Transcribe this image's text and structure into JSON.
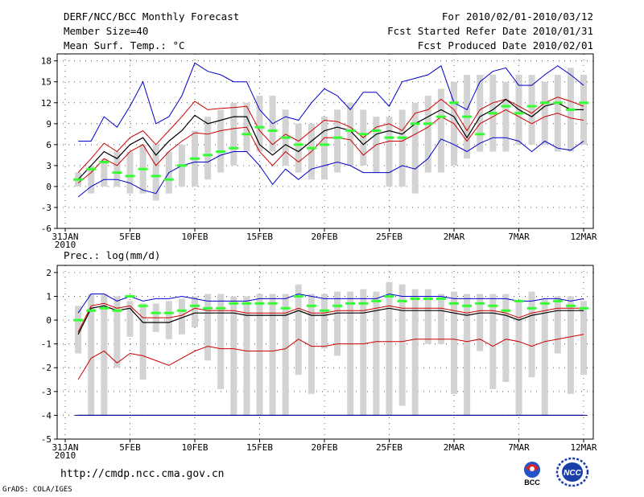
{
  "header": {
    "title": "DERF/NCC/BCC Monthly Forecast",
    "member_size": "Member Size=40",
    "variable": "Mean Surf. Temp.: °C",
    "period": "For 2010/02/01-2010/03/12",
    "started": "Fcst Started Refer Date 2010/01/31",
    "produced": "Fcst Produced Date 2010/02/01"
  },
  "footer": {
    "url": "http://cmdp.ncc.cma.gov.cn",
    "grads": "GrADS: COLA/IGES"
  },
  "logos": {
    "bcc_text": "BCC",
    "ncc_text": "NCC"
  },
  "colors": {
    "max_line": "#0000cc",
    "min_line": "#0000cc",
    "upper_line": "#cc0000",
    "lower_line": "#cc0000",
    "mean_line": "#000000",
    "median_mark": "#33ff33",
    "box": "#d3d3d3",
    "grid": "#555555"
  },
  "chart_data": [
    {
      "type": "box-ensemble",
      "title": "Mean Surf. Temp.: °C",
      "ylim": [
        -6,
        19
      ],
      "yticks": [
        -6,
        -3,
        0,
        3,
        6,
        9,
        12,
        15,
        18
      ],
      "xlim": [
        0,
        40
      ],
      "xticks": [
        {
          "x": 0,
          "label": "31JAN",
          "sub": "2010"
        },
        {
          "x": 5,
          "label": "5FEB"
        },
        {
          "x": 10,
          "label": "10FEB"
        },
        {
          "x": 15,
          "label": "15FEB"
        },
        {
          "x": 20,
          "label": "20FEB"
        },
        {
          "x": 25,
          "label": "25FEB"
        },
        {
          "x": 30,
          "label": "2MAR"
        },
        {
          "x": 35,
          "label": "7MAR"
        },
        {
          "x": 40,
          "label": "12MAR"
        }
      ],
      "days": [
        1,
        2,
        3,
        4,
        5,
        6,
        7,
        8,
        9,
        10,
        11,
        12,
        13,
        14,
        15,
        16,
        17,
        18,
        19,
        20,
        21,
        22,
        23,
        24,
        25,
        26,
        27,
        28,
        29,
        30,
        31,
        32,
        33,
        34,
        35,
        36,
        37,
        38,
        39,
        40
      ],
      "box_low": [
        0,
        -1,
        0,
        0,
        -1,
        -1,
        -2,
        -1,
        0,
        0,
        1,
        2,
        3,
        5,
        5,
        5,
        3,
        2,
        1,
        1,
        2,
        3,
        3,
        2,
        0,
        0,
        -1,
        2,
        2,
        3,
        4,
        5,
        5,
        5,
        6,
        6,
        6,
        5,
        5,
        6
      ],
      "box_high": [
        2,
        3,
        4,
        5,
        5,
        6,
        6,
        5,
        6,
        8,
        10,
        11,
        12,
        12,
        13,
        13,
        11,
        9,
        9,
        10,
        11,
        12,
        11,
        10,
        10,
        11,
        12,
        13,
        14,
        15,
        16,
        16,
        16,
        15,
        16,
        16,
        15,
        16,
        17,
        16
      ],
      "median": [
        1,
        2.5,
        3.5,
        2,
        1.5,
        2.5,
        1.5,
        1,
        3,
        4,
        4.5,
        5,
        5.5,
        7.5,
        8.5,
        8,
        7,
        6,
        5.5,
        6,
        7,
        8,
        7.5,
        8,
        7,
        7,
        9,
        9,
        10,
        12,
        10,
        7.5,
        10.5,
        11.5,
        10.5,
        11.5,
        12,
        12,
        11,
        12
      ],
      "max": [
        6.5,
        6.5,
        10,
        8.5,
        11.5,
        15,
        9,
        10,
        13,
        17.7,
        16.5,
        16,
        15,
        15,
        11,
        9,
        10,
        9.5,
        12,
        14,
        13,
        11,
        13.5,
        13.5,
        11.5,
        15,
        15.5,
        16,
        17.3,
        12,
        11,
        15,
        16.5,
        17,
        14.5,
        14.5,
        16,
        17.3,
        16,
        14.5
      ],
      "upper": [
        2,
        4,
        6.2,
        5,
        7,
        8,
        6,
        8,
        10,
        12.2,
        11,
        11.2,
        11.3,
        11.5,
        8,
        6,
        7.5,
        6.5,
        8,
        9.5,
        9.3,
        8.5,
        7,
        8.5,
        9,
        8,
        10.5,
        11,
        12.5,
        11,
        8,
        11,
        12,
        12.5,
        11.5,
        10.5,
        12,
        12.8,
        12.2,
        11.5
      ],
      "mean": [
        1,
        3,
        5,
        4,
        6,
        7,
        4.5,
        6.5,
        8,
        10.2,
        9,
        9.5,
        10,
        10,
        6,
        4.5,
        6,
        5,
        6.5,
        8,
        8.5,
        8,
        6,
        7.5,
        8,
        7.5,
        9,
        10,
        11,
        10,
        7,
        10,
        11,
        12.5,
        11,
        10,
        11.5,
        12,
        11,
        11
      ],
      "lower": [
        0.5,
        2,
        4,
        3,
        5,
        6,
        3,
        5,
        6.5,
        7.7,
        7.5,
        8,
        8.3,
        8.5,
        5,
        3,
        5,
        3.5,
        5,
        7,
        7,
        6.7,
        4.5,
        6,
        6.5,
        6.5,
        7.5,
        8.5,
        10,
        9,
        6.5,
        9,
        10,
        11,
        10,
        9,
        10,
        10.5,
        9.8,
        9.5
      ],
      "min": [
        -1.5,
        0,
        1,
        1,
        0.5,
        -0.5,
        -1,
        2,
        3,
        3.5,
        3.5,
        4.5,
        5,
        5,
        3,
        0.3,
        2.5,
        1,
        2.5,
        3,
        3.5,
        3,
        2,
        2,
        2,
        3,
        2.5,
        4,
        6.8,
        6,
        5,
        6.2,
        7,
        7,
        6.5,
        5,
        6.5,
        5.5,
        5.2,
        6.5
      ]
    },
    {
      "type": "box-ensemble",
      "title": "Prec.: log(mm/d)",
      "ylim": [
        -5,
        2.3
      ],
      "yticks": [
        -5,
        -4,
        -3,
        -2,
        -1,
        0,
        1,
        2
      ],
      "xlim": [
        0,
        40
      ],
      "xticks": [
        {
          "x": 0,
          "label": "31JAN",
          "sub": "2010"
        },
        {
          "x": 5,
          "label": "5FEB"
        },
        {
          "x": 10,
          "label": "10FEB"
        },
        {
          "x": 15,
          "label": "15FEB"
        },
        {
          "x": 20,
          "label": "20FEB"
        },
        {
          "x": 25,
          "label": "25FEB"
        },
        {
          "x": 30,
          "label": "2MAR"
        },
        {
          "x": 35,
          "label": "7MAR"
        },
        {
          "x": 40,
          "label": "12MAR"
        }
      ],
      "days": [
        1,
        2,
        3,
        4,
        5,
        6,
        7,
        8,
        9,
        10,
        11,
        12,
        13,
        14,
        15,
        16,
        17,
        18,
        19,
        20,
        21,
        22,
        23,
        24,
        25,
        26,
        27,
        28,
        29,
        30,
        31,
        32,
        33,
        34,
        35,
        36,
        37,
        38,
        39,
        40
      ],
      "box_low": [
        -1.4,
        -4,
        -4,
        -2,
        -0.7,
        -2.5,
        -0.5,
        -0.8,
        -0.6,
        -0.3,
        -1.7,
        -2.9,
        -4,
        -4,
        -4,
        -4,
        -4,
        -2.3,
        -3.1,
        -1.2,
        -1.5,
        -4,
        -4,
        -4,
        -4,
        -3.6,
        -4,
        -1,
        -1,
        -3.1,
        -4,
        -1.3,
        -2.9,
        -2.6,
        -4,
        -2.4,
        -4,
        -1.4,
        -3.1,
        -2.3
      ],
      "box_high": [
        0.6,
        1.1,
        1.1,
        1,
        0.8,
        0.7,
        0.7,
        0.8,
        0.9,
        1,
        1.1,
        1.1,
        1,
        1,
        1.1,
        1.1,
        1.1,
        1.5,
        1.1,
        1.1,
        1.2,
        1.2,
        1.3,
        1.2,
        1.6,
        1.5,
        1.3,
        1.3,
        1.1,
        1.2,
        1.1,
        1.1,
        1.1,
        1.1,
        0.8,
        1.2,
        0.9,
        1,
        1,
        0.8
      ],
      "median": [
        0,
        0.4,
        0.5,
        0.4,
        1,
        0.6,
        0.3,
        0.3,
        0.4,
        0.6,
        0.5,
        0.5,
        0.7,
        0.7,
        0.7,
        0.7,
        0.5,
        1,
        0.6,
        0.4,
        0.6,
        0.7,
        0.7,
        0.8,
        1,
        0.8,
        0.9,
        0.9,
        0.9,
        0.7,
        0.6,
        0.7,
        0.6,
        0.4,
        0.8,
        0.5,
        0.7,
        0.8,
        0.6,
        0.5
      ],
      "max": [
        0.3,
        1.1,
        1.1,
        0.8,
        1,
        0.8,
        0.9,
        0.9,
        1,
        0.9,
        0.8,
        0.8,
        0.8,
        0.8,
        0.9,
        0.9,
        0.9,
        1.1,
        1,
        0.9,
        0.9,
        0.9,
        0.9,
        0.9,
        1.1,
        1,
        1,
        1,
        1,
        0.9,
        0.9,
        0.9,
        0.9,
        0.9,
        0.8,
        0.8,
        0.9,
        0.9,
        0.8,
        0.9
      ],
      "upper": [
        -0.5,
        0.6,
        0.7,
        0.5,
        0.6,
        0.1,
        0.1,
        0.1,
        0.2,
        0.5,
        0.4,
        0.4,
        0.4,
        0.3,
        0.3,
        0.3,
        0.3,
        0.5,
        0.3,
        0.3,
        0.4,
        0.4,
        0.4,
        0.5,
        0.6,
        0.5,
        0.5,
        0.5,
        0.5,
        0.4,
        0.3,
        0.4,
        0.4,
        0.3,
        0.1,
        0.3,
        0.4,
        0.5,
        0.5,
        0.5
      ],
      "mean": [
        -0.6,
        0.5,
        0.6,
        0.4,
        0.5,
        -0.1,
        -0.1,
        -0.1,
        0.1,
        0.3,
        0.3,
        0.3,
        0.3,
        0.2,
        0.2,
        0.2,
        0.2,
        0.4,
        0.2,
        0.2,
        0.3,
        0.3,
        0.3,
        0.4,
        0.5,
        0.4,
        0.4,
        0.4,
        0.4,
        0.3,
        0.2,
        0.3,
        0.3,
        0.2,
        0,
        0.2,
        0.3,
        0.4,
        0.4,
        0.4
      ],
      "lower": [
        -2.5,
        -1.6,
        -1.3,
        -1.8,
        -1.4,
        -1.5,
        -1.7,
        -1.9,
        -1.6,
        -1.3,
        -1.1,
        -1.2,
        -1.2,
        -1.3,
        -1.3,
        -1.3,
        -1.2,
        -0.8,
        -1.1,
        -1.1,
        -1.0,
        -1.0,
        -1.0,
        -0.9,
        -0.9,
        -0.9,
        -0.8,
        -0.8,
        -0.8,
        -0.8,
        -0.9,
        -0.8,
        -1.1,
        -0.8,
        -0.9,
        -1.1,
        -0.9,
        -0.8,
        -0.7,
        -0.6
      ],
      "min": [
        -4,
        -4,
        -4,
        -4,
        -4,
        -4,
        -4,
        -4,
        -4,
        -4,
        -4,
        -4,
        -4,
        -4,
        -4,
        -4,
        -4,
        -4,
        -4,
        -4,
        -4,
        -4,
        -4,
        -4,
        -4,
        -4,
        -4,
        -4,
        -4,
        -4,
        -4,
        -4,
        -4,
        -4,
        -4,
        -4,
        -4,
        -4,
        -4,
        -4
      ]
    }
  ]
}
